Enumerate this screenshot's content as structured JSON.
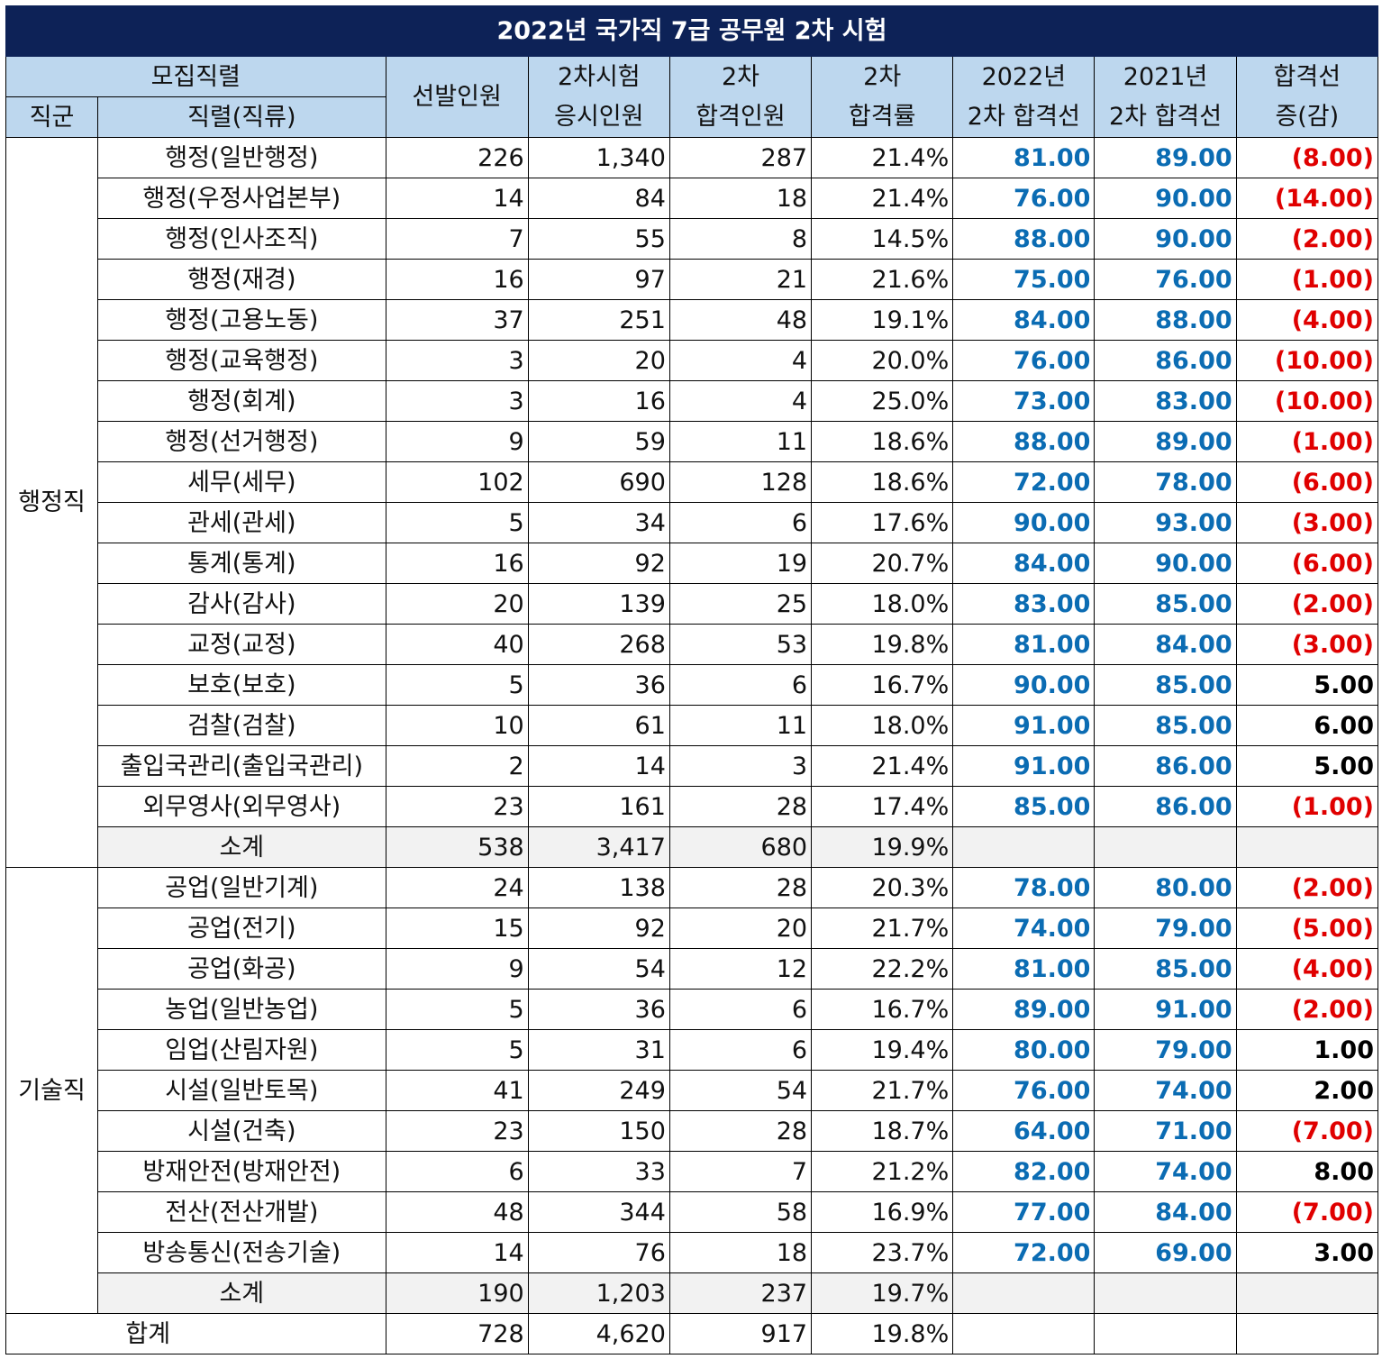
{
  "title": "2022년 국가직 7급 공무원 2차 시험",
  "headers": {
    "recruit": "모집직렬",
    "group": "직군",
    "series": "직렬(직류)",
    "selected": [
      "선발인원"
    ],
    "applicants": [
      "2차시험",
      "응시인원"
    ],
    "passed": [
      "2차",
      "합격인원"
    ],
    "rate": [
      "2차",
      "합격률"
    ],
    "cut2022": [
      "2022년",
      "2차 합격선"
    ],
    "cut2021": [
      "2021년",
      "2차 합격선"
    ],
    "diff": [
      "합격선",
      "증(감)"
    ]
  },
  "groups": [
    {
      "name": "행정직",
      "rows": [
        {
          "name": "행정(일반행정)",
          "selected": "226",
          "applicants": "1,340",
          "passed": "287",
          "rate": "21.4%",
          "cut2022": "81.00",
          "cut2021": "89.00",
          "diff": "(8.00)"
        },
        {
          "name": "행정(우정사업본부)",
          "selected": "14",
          "applicants": "84",
          "passed": "18",
          "rate": "21.4%",
          "cut2022": "76.00",
          "cut2021": "90.00",
          "diff": "(14.00)"
        },
        {
          "name": "행정(인사조직)",
          "selected": "7",
          "applicants": "55",
          "passed": "8",
          "rate": "14.5%",
          "cut2022": "88.00",
          "cut2021": "90.00",
          "diff": "(2.00)"
        },
        {
          "name": "행정(재경)",
          "selected": "16",
          "applicants": "97",
          "passed": "21",
          "rate": "21.6%",
          "cut2022": "75.00",
          "cut2021": "76.00",
          "diff": "(1.00)"
        },
        {
          "name": "행정(고용노동)",
          "selected": "37",
          "applicants": "251",
          "passed": "48",
          "rate": "19.1%",
          "cut2022": "84.00",
          "cut2021": "88.00",
          "diff": "(4.00)"
        },
        {
          "name": "행정(교육행정)",
          "selected": "3",
          "applicants": "20",
          "passed": "4",
          "rate": "20.0%",
          "cut2022": "76.00",
          "cut2021": "86.00",
          "diff": "(10.00)"
        },
        {
          "name": "행정(회계)",
          "selected": "3",
          "applicants": "16",
          "passed": "4",
          "rate": "25.0%",
          "cut2022": "73.00",
          "cut2021": "83.00",
          "diff": "(10.00)"
        },
        {
          "name": "행정(선거행정)",
          "selected": "9",
          "applicants": "59",
          "passed": "11",
          "rate": "18.6%",
          "cut2022": "88.00",
          "cut2021": "89.00",
          "diff": "(1.00)"
        },
        {
          "name": "세무(세무)",
          "selected": "102",
          "applicants": "690",
          "passed": "128",
          "rate": "18.6%",
          "cut2022": "72.00",
          "cut2021": "78.00",
          "diff": "(6.00)"
        },
        {
          "name": "관세(관세)",
          "selected": "5",
          "applicants": "34",
          "passed": "6",
          "rate": "17.6%",
          "cut2022": "90.00",
          "cut2021": "93.00",
          "diff": "(3.00)"
        },
        {
          "name": "통계(통계)",
          "selected": "16",
          "applicants": "92",
          "passed": "19",
          "rate": "20.7%",
          "cut2022": "84.00",
          "cut2021": "90.00",
          "diff": "(6.00)"
        },
        {
          "name": "감사(감사)",
          "selected": "20",
          "applicants": "139",
          "passed": "25",
          "rate": "18.0%",
          "cut2022": "83.00",
          "cut2021": "85.00",
          "diff": "(2.00)"
        },
        {
          "name": "교정(교정)",
          "selected": "40",
          "applicants": "268",
          "passed": "53",
          "rate": "19.8%",
          "cut2022": "81.00",
          "cut2021": "84.00",
          "diff": "(3.00)"
        },
        {
          "name": "보호(보호)",
          "selected": "5",
          "applicants": "36",
          "passed": "6",
          "rate": "16.7%",
          "cut2022": "90.00",
          "cut2021": "85.00",
          "diff": "5.00"
        },
        {
          "name": "검찰(검찰)",
          "selected": "10",
          "applicants": "61",
          "passed": "11",
          "rate": "18.0%",
          "cut2022": "91.00",
          "cut2021": "85.00",
          "diff": "6.00"
        },
        {
          "name": "출입국관리(출입국관리)",
          "selected": "2",
          "applicants": "14",
          "passed": "3",
          "rate": "21.4%",
          "cut2022": "91.00",
          "cut2021": "86.00",
          "diff": "5.00"
        },
        {
          "name": "외무영사(외무영사)",
          "selected": "23",
          "applicants": "161",
          "passed": "28",
          "rate": "17.4%",
          "cut2022": "85.00",
          "cut2021": "86.00",
          "diff": "(1.00)"
        }
      ],
      "subtotal": {
        "name": "소계",
        "selected": "538",
        "applicants": "3,417",
        "passed": "680",
        "rate": "19.9%"
      }
    },
    {
      "name": "기술직",
      "rows": [
        {
          "name": "공업(일반기계)",
          "selected": "24",
          "applicants": "138",
          "passed": "28",
          "rate": "20.3%",
          "cut2022": "78.00",
          "cut2021": "80.00",
          "diff": "(2.00)"
        },
        {
          "name": "공업(전기)",
          "selected": "15",
          "applicants": "92",
          "passed": "20",
          "rate": "21.7%",
          "cut2022": "74.00",
          "cut2021": "79.00",
          "diff": "(5.00)"
        },
        {
          "name": "공업(화공)",
          "selected": "9",
          "applicants": "54",
          "passed": "12",
          "rate": "22.2%",
          "cut2022": "81.00",
          "cut2021": "85.00",
          "diff": "(4.00)"
        },
        {
          "name": "농업(일반농업)",
          "selected": "5",
          "applicants": "36",
          "passed": "6",
          "rate": "16.7%",
          "cut2022": "89.00",
          "cut2021": "91.00",
          "diff": "(2.00)"
        },
        {
          "name": "임업(산림자원)",
          "selected": "5",
          "applicants": "31",
          "passed": "6",
          "rate": "19.4%",
          "cut2022": "80.00",
          "cut2021": "79.00",
          "diff": "1.00"
        },
        {
          "name": "시설(일반토목)",
          "selected": "41",
          "applicants": "249",
          "passed": "54",
          "rate": "21.7%",
          "cut2022": "76.00",
          "cut2021": "74.00",
          "diff": "2.00"
        },
        {
          "name": "시설(건축)",
          "selected": "23",
          "applicants": "150",
          "passed": "28",
          "rate": "18.7%",
          "cut2022": "64.00",
          "cut2021": "71.00",
          "diff": "(7.00)"
        },
        {
          "name": "방재안전(방재안전)",
          "selected": "6",
          "applicants": "33",
          "passed": "7",
          "rate": "21.2%",
          "cut2022": "82.00",
          "cut2021": "74.00",
          "diff": "8.00"
        },
        {
          "name": "전산(전산개발)",
          "selected": "48",
          "applicants": "344",
          "passed": "58",
          "rate": "16.9%",
          "cut2022": "77.00",
          "cut2021": "84.00",
          "diff": "(7.00)"
        },
        {
          "name": "방송통신(전송기술)",
          "selected": "14",
          "applicants": "76",
          "passed": "18",
          "rate": "23.7%",
          "cut2022": "72.00",
          "cut2021": "69.00",
          "diff": "3.00"
        }
      ],
      "subtotal": {
        "name": "소계",
        "selected": "190",
        "applicants": "1,203",
        "passed": "237",
        "rate": "19.7%"
      }
    }
  ],
  "total": {
    "name": "합계",
    "selected": "728",
    "applicants": "4,620",
    "passed": "917",
    "rate": "19.8%"
  },
  "colors": {
    "title_bg": "#0d2257",
    "header_bg": "#bdd7ee",
    "cut_blue": "#0b6cb3",
    "decrease_red": "#e00000",
    "subtotal_bg": "#f2f2f2"
  }
}
